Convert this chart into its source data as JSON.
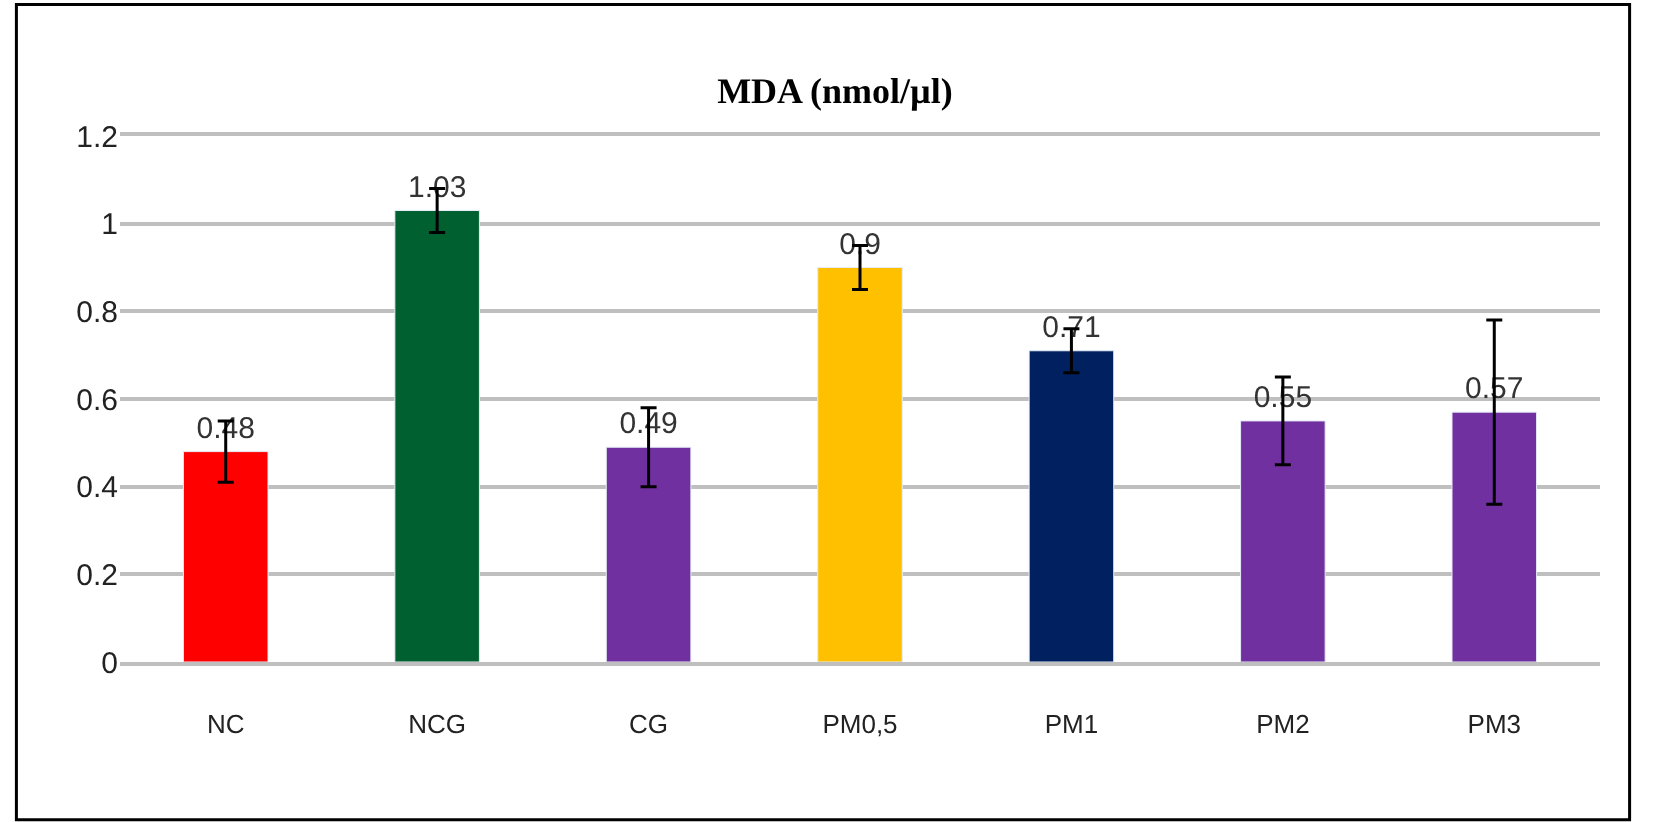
{
  "chart_data": {
    "type": "bar",
    "title": "MDA (nmol/µl)",
    "categories": [
      "NC",
      "NCG",
      "CG",
      "PM0,5",
      "PM1",
      "PM2",
      "PM3"
    ],
    "values": [
      0.48,
      1.03,
      0.49,
      0.9,
      0.71,
      0.55,
      0.57
    ],
    "colors": [
      "#ff0000",
      "#006030",
      "#7030a0",
      "#ffc000",
      "#002060",
      "#7030a0",
      "#7030a0"
    ],
    "errors": [
      0.07,
      0.05,
      0.09,
      0.05,
      0.05,
      0.1,
      0.21
    ],
    "data_labels": true,
    "ylim": [
      0,
      1.2
    ],
    "yticks": [
      0,
      0.2,
      0.4,
      0.6,
      0.8,
      1,
      1.2
    ],
    "grid": "y"
  }
}
